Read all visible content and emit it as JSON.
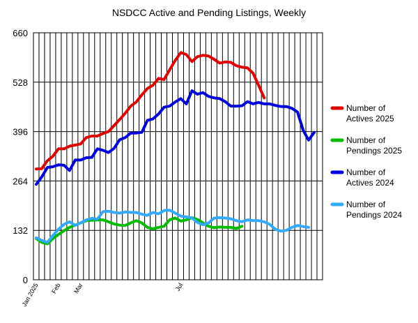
{
  "chart_data": {
    "type": "line",
    "title": "NSDCC Active and Pending Listings, Weekly",
    "xlabel": "",
    "ylabel": "",
    "ylim": [
      0,
      660
    ],
    "yticks": [
      0,
      132,
      264,
      396,
      528,
      660
    ],
    "x_week_count": 52,
    "xtick_labels": [
      {
        "week": 1,
        "label": "Jan 2025"
      },
      {
        "week": 5,
        "label": "Feb"
      },
      {
        "week": 9,
        "label": "Mar"
      },
      {
        "week": 27,
        "label": "Jul"
      }
    ],
    "grid": true,
    "legend_position": "right",
    "series": [
      {
        "name": "Number of Actives 2025",
        "color": "#e00000",
        "values": [
          296,
          297,
          318,
          330,
          350,
          350,
          357,
          360,
          363,
          380,
          384,
          384,
          391,
          396,
          412,
          428,
          445,
          464,
          475,
          494,
          511,
          520,
          538,
          535,
          561,
          586,
          607,
          602,
          583,
          596,
          600,
          598,
          589,
          579,
          582,
          581,
          572,
          568,
          566,
          552,
          520,
          486
        ]
      },
      {
        "name": "Number of Pendings 2025",
        "color": "#00bb00",
        "values": [
          110,
          100,
          96,
          110,
          121,
          131,
          140,
          146,
          152,
          158,
          159,
          160,
          160,
          155,
          149,
          146,
          145,
          152,
          158,
          152,
          140,
          136,
          140,
          143,
          160,
          165,
          157,
          160,
          166,
          161,
          152,
          143,
          139,
          141,
          140,
          140,
          137,
          143
        ]
      },
      {
        "name": "Number of Actives 2024",
        "color": "#0000dd",
        "values": [
          255,
          275,
          300,
          302,
          307,
          306,
          292,
          320,
          320,
          326,
          327,
          350,
          346,
          340,
          351,
          374,
          380,
          392,
          392,
          394,
          426,
          430,
          443,
          461,
          464,
          475,
          484,
          470,
          505,
          496,
          500,
          490,
          486,
          484,
          476,
          464,
          464,
          465,
          476,
          470,
          474,
          470,
          470,
          466,
          463,
          463,
          458,
          448,
          400,
          373,
          394
        ]
      },
      {
        "name": "Number of Pendings 2024",
        "color": "#33aaff",
        "values": [
          112,
          105,
          100,
          118,
          135,
          148,
          155,
          145,
          152,
          160,
          164,
          162,
          182,
          183,
          180,
          178,
          181,
          180,
          180,
          175,
          172,
          180,
          176,
          185,
          186,
          178,
          170,
          168,
          165,
          153,
          147,
          152,
          165,
          166,
          165,
          163,
          158,
          155,
          160,
          158,
          158,
          155,
          148,
          135,
          130,
          132,
          140,
          145,
          142,
          140
        ]
      }
    ]
  }
}
